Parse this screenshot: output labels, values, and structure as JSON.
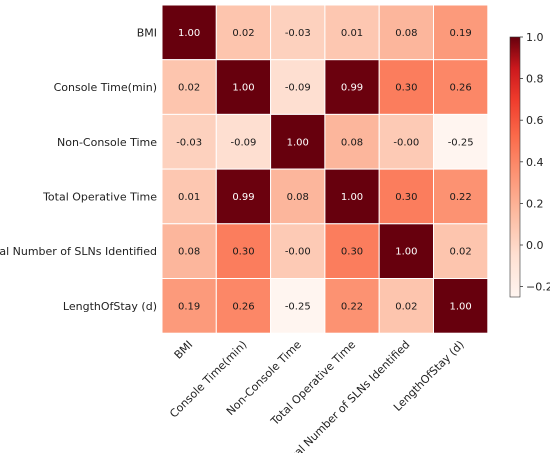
{
  "chart_data": {
    "type": "heatmap",
    "title": "",
    "xlabel": "",
    "ylabel": "",
    "row_labels": [
      "BMI",
      "Console Time(min)",
      "Non-Console Time",
      "Total Operative Time",
      "Total Number of SLNs Identified",
      "LengthOfStay (d)"
    ],
    "col_labels": [
      "BMI",
      "Console Time(min)",
      "Non-Console Time",
      "Total Operative Time",
      "Total Number of SLNs Identified",
      "LengthOfStay (d)"
    ],
    "values": [
      [
        1.0,
        0.02,
        -0.03,
        0.01,
        0.08,
        0.19
      ],
      [
        0.02,
        1.0,
        -0.09,
        0.99,
        0.3,
        0.26
      ],
      [
        -0.03,
        -0.09,
        1.0,
        0.08,
        -0.0,
        -0.25
      ],
      [
        0.01,
        0.99,
        0.08,
        1.0,
        0.3,
        0.22
      ],
      [
        0.08,
        0.3,
        -0.0,
        0.3,
        1.0,
        0.02
      ],
      [
        0.19,
        0.26,
        -0.25,
        0.22,
        0.02,
        1.0
      ]
    ],
    "cell_text": [
      [
        "1.00",
        "0.02",
        "-0.03",
        "0.01",
        "0.08",
        "0.19"
      ],
      [
        "0.02",
        "1.00",
        "-0.09",
        "0.99",
        "0.30",
        "0.26"
      ],
      [
        "-0.03",
        "-0.09",
        "1.00",
        "0.08",
        "-0.00",
        "-0.25"
      ],
      [
        "0.01",
        "0.99",
        "0.08",
        "1.00",
        "0.30",
        "0.22"
      ],
      [
        "0.08",
        "0.30",
        "-0.00",
        "0.30",
        "1.00",
        "0.02"
      ],
      [
        "0.19",
        "0.26",
        "-0.25",
        "0.22",
        "0.02",
        "1.00"
      ]
    ],
    "colormap": "Reds",
    "vmin": -0.25,
    "vmax": 1.0,
    "colorbar_ticks": [
      1.0,
      0.8,
      0.6,
      0.4,
      0.2,
      0.0,
      -0.2
    ],
    "colorbar_tick_labels": [
      "1.0",
      "0.8",
      "0.6",
      "0.4",
      "0.2",
      "0.0",
      "−0.2"
    ],
    "colorbar_placement": "right"
  }
}
